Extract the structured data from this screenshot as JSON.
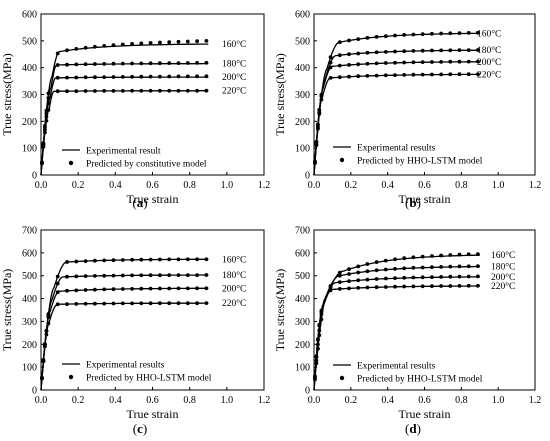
{
  "chart_data": [
    {
      "type": "line",
      "caption": "(a)",
      "xlabel": "True strain",
      "ylabel": "True stress(MPa)",
      "xlim": [
        0,
        1.2
      ],
      "ylim": [
        0,
        600
      ],
      "xticks": [
        "0.0",
        "0.2",
        "0.4",
        "0.6",
        "0.8",
        "1.0",
        "1.2"
      ],
      "yticks": [
        "0",
        "100",
        "200",
        "300",
        "400",
        "500",
        "600"
      ],
      "legend": [
        "Experimental result",
        "Predicted by constitutive model"
      ],
      "series": [
        {
          "name": "160°C",
          "peak": 460,
          "sat": 488,
          "pred_end": 500,
          "ey0": 0.06,
          "pk": 0.1
        },
        {
          "name": "180°C",
          "peak": 410,
          "sat": 415,
          "pred_end": 418,
          "ey0": 0.055,
          "pk": 0.085
        },
        {
          "name": "200°C",
          "peak": 362,
          "sat": 365,
          "pred_end": 368,
          "ey0": 0.05,
          "pk": 0.08
        },
        {
          "name": "220°C",
          "peak": 312,
          "sat": 314,
          "pred_end": 314,
          "ey0": 0.045,
          "pk": 0.07
        }
      ]
    },
    {
      "type": "line",
      "caption": "(b)",
      "xlabel": "True strain",
      "ylabel": "True stress(MPa)",
      "xlim": [
        0,
        1.2
      ],
      "ylim": [
        0,
        600
      ],
      "xticks": [
        "0.0",
        "0.2",
        "0.4",
        "0.6",
        "0.8",
        "1.0",
        "1.2"
      ],
      "yticks": [
        "0",
        "100",
        "200",
        "300",
        "400",
        "500",
        "600"
      ],
      "legend": [
        "Experimental results",
        "Predicted by HHO-LSTM model"
      ],
      "series": [
        {
          "name": "160°C",
          "peak": 495,
          "sat": 528,
          "pred_end": 530,
          "ey0": 0.07,
          "pk": 0.14
        },
        {
          "name": "180°C",
          "peak": 445,
          "sat": 465,
          "pred_end": 466,
          "ey0": 0.06,
          "pk": 0.12
        },
        {
          "name": "200°C",
          "peak": 405,
          "sat": 422,
          "pred_end": 423,
          "ey0": 0.05,
          "pk": 0.1
        },
        {
          "name": "220°C",
          "peak": 362,
          "sat": 375,
          "pred_end": 376,
          "ey0": 0.045,
          "pk": 0.09
        }
      ]
    },
    {
      "type": "line",
      "caption": "(c)",
      "xlabel": "True strain",
      "ylabel": "True stress(MPa)",
      "xlim": [
        0,
        1.2
      ],
      "ylim": [
        0,
        700
      ],
      "xticks": [
        "0.0",
        "0.2",
        "0.4",
        "0.6",
        "0.8",
        "1.0",
        "1.2"
      ],
      "yticks": [
        "0",
        "100",
        "200",
        "300",
        "400",
        "500",
        "600",
        "700"
      ],
      "legend": [
        "Experimental results",
        "Predicted by HHO-LSTM model"
      ],
      "series": [
        {
          "name": "160°C",
          "peak": 560,
          "sat": 572,
          "pred_end": 572,
          "ey0": 0.07,
          "pk": 0.14
        },
        {
          "name": "180°C",
          "peak": 495,
          "sat": 503,
          "pred_end": 503,
          "ey0": 0.06,
          "pk": 0.12
        },
        {
          "name": "200°C",
          "peak": 432,
          "sat": 445,
          "pred_end": 445,
          "ey0": 0.05,
          "pk": 0.1
        },
        {
          "name": "220°C",
          "peak": 375,
          "sat": 380,
          "pred_end": 380,
          "ey0": 0.045,
          "pk": 0.09
        }
      ]
    },
    {
      "type": "line",
      "caption": "(d)",
      "xlabel": "True strain",
      "ylabel": "True stress(MPa)",
      "xlim": [
        0,
        1.2
      ],
      "ylim": [
        0,
        700
      ],
      "xticks": [
        "0.0",
        "0.2",
        "0.4",
        "0.6",
        "0.8",
        "1.0",
        "1.2"
      ],
      "yticks": [
        "0",
        "100",
        "200",
        "300",
        "400",
        "500",
        "600",
        "700"
      ],
      "legend": [
        "Experimental results",
        "Predicted by HHO-LSTM model"
      ],
      "series": [
        {
          "name": "160°C",
          "peak": 520,
          "sat": 590,
          "pred_end": 595,
          "ey0": 0.07,
          "pk": 0.16
        },
        {
          "name": "180°C",
          "peak": 500,
          "sat": 540,
          "pred_end": 542,
          "ey0": 0.06,
          "pk": 0.14
        },
        {
          "name": "200°C",
          "peak": 470,
          "sat": 495,
          "pred_end": 497,
          "ey0": 0.05,
          "pk": 0.12
        },
        {
          "name": "220°C",
          "peak": 440,
          "sat": 455,
          "pred_end": 456,
          "ey0": 0.045,
          "pk": 0.1
        }
      ]
    }
  ]
}
